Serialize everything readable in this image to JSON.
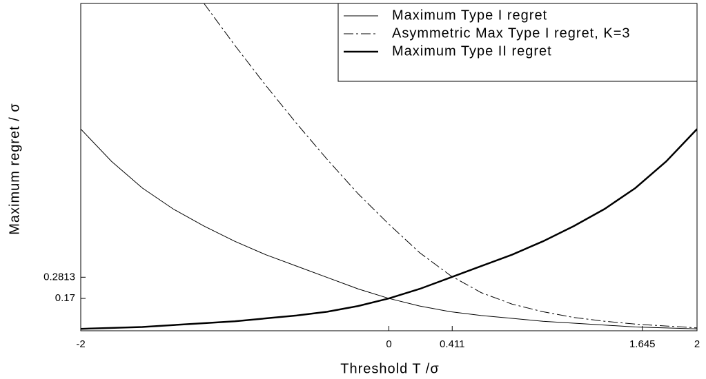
{
  "chart_data": {
    "type": "line",
    "xlabel": "Threshold T /σ",
    "ylabel": "Maximum regret /  σ",
    "x": [
      -2,
      -1.8,
      -1.6,
      -1.4,
      -1.2,
      -1,
      -0.8,
      -0.6,
      -0.4,
      -0.2,
      0,
      0.2,
      0.4,
      0.6,
      0.8,
      1,
      1.2,
      1.4,
      1.6,
      1.8,
      2
    ],
    "series": [
      {
        "name": "Maximum Type I regret",
        "color": "#000000",
        "dash": "solid",
        "width": 1,
        "values": [
          1.06,
          0.89,
          0.75,
          0.64,
          0.55,
          0.47,
          0.4,
          0.34,
          0.28,
          0.22,
          0.17,
          0.13,
          0.1,
          0.08,
          0.065,
          0.05,
          0.04,
          0.03,
          0.02,
          0.015,
          0.01
        ]
      },
      {
        "name": "Asymmetric Max Type I regret, K=3",
        "color": "#000000",
        "dash": "dashdot",
        "width": 1,
        "values": [
          null,
          null,
          null,
          null,
          1.72,
          1.5,
          1.29,
          1.09,
          0.9,
          0.72,
          0.56,
          0.41,
          0.29,
          0.2,
          0.14,
          0.1,
          0.07,
          0.05,
          0.035,
          0.025,
          0.015
        ]
      },
      {
        "name": "Maximum Type II regret",
        "color": "#000000",
        "dash": "solid",
        "width": 2.5,
        "values": [
          0.01,
          0.015,
          0.02,
          0.03,
          0.04,
          0.05,
          0.065,
          0.08,
          0.1,
          0.13,
          0.17,
          0.22,
          0.28,
          0.34,
          0.4,
          0.47,
          0.55,
          0.64,
          0.75,
          0.89,
          1.06
        ]
      }
    ],
    "xlim": [
      -2,
      2
    ],
    "xticks": [
      -2,
      0,
      0.411,
      1.645,
      2
    ],
    "ylim": [
      0,
      1.72
    ],
    "yticks": [
      0.17,
      0.2813
    ],
    "legend": "upper right",
    "grid": false
  }
}
